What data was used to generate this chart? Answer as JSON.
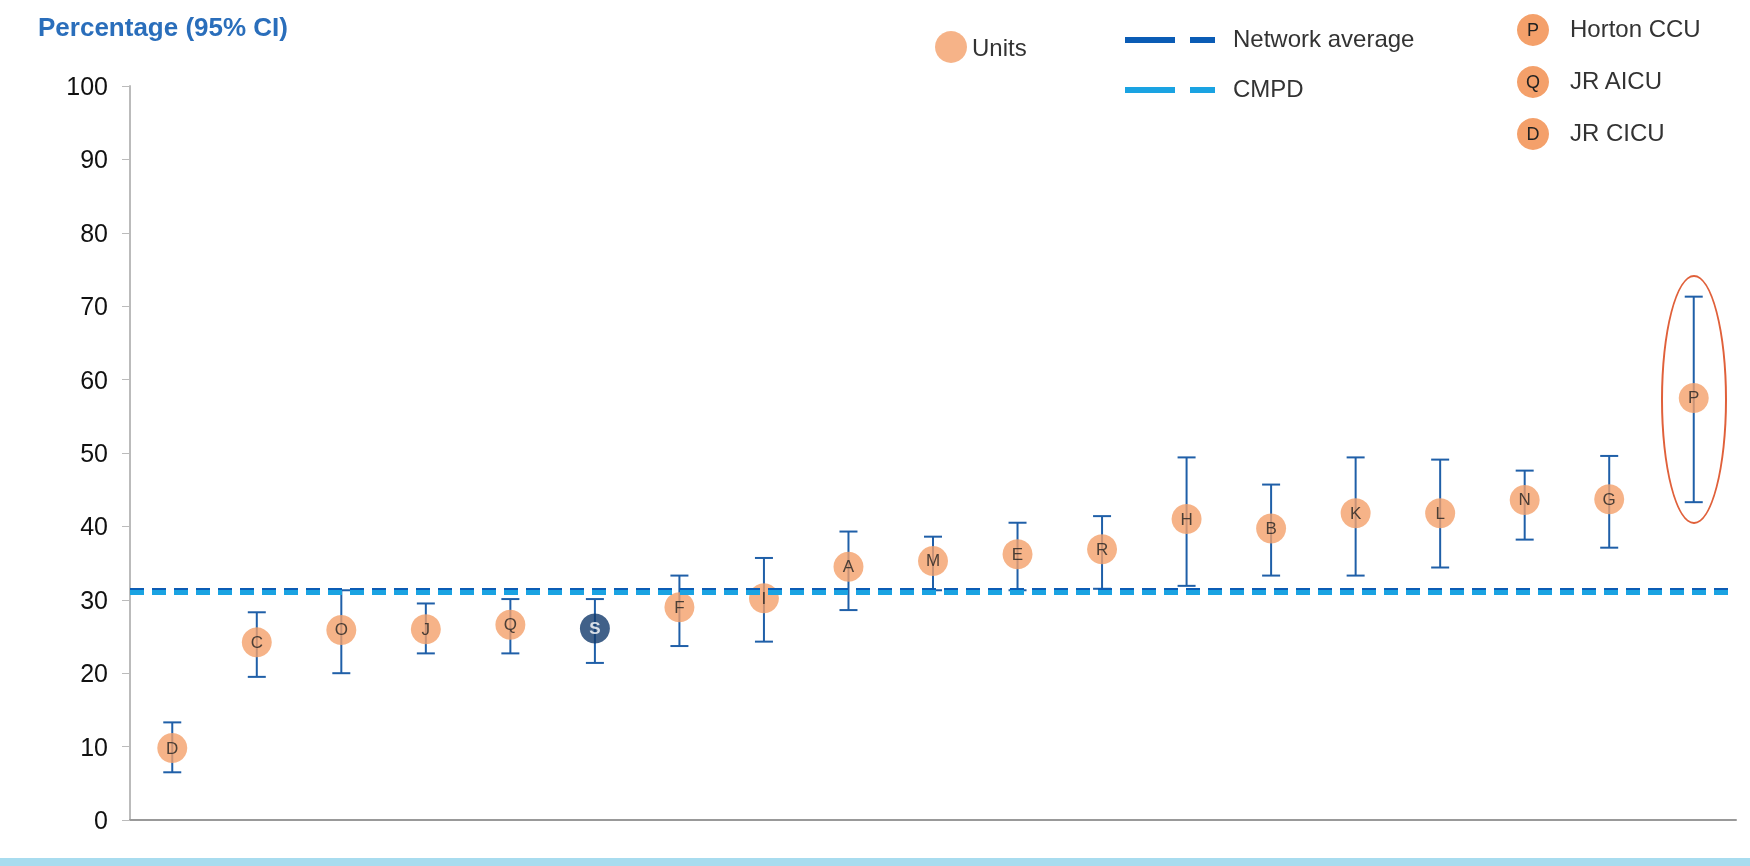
{
  "chart_data": {
    "type": "scatter",
    "ylabel": "Percentage (95% CI)",
    "categories": [
      "D",
      "C",
      "O",
      "J",
      "Q",
      "S",
      "F",
      "I",
      "A",
      "M",
      "E",
      "R",
      "H",
      "B",
      "K",
      "L",
      "N",
      "G",
      "P"
    ],
    "series": [
      {
        "name": "Units",
        "color": "#f4a06a",
        "colors": [
          "#f4a06a",
          "#f4a06a",
          "#f4a06a",
          "#f4a06a",
          "#f4a06a",
          "#123a6b",
          "#f4a06a",
          "#f4a06a",
          "#f4a06a",
          "#f4a06a",
          "#f4a06a",
          "#f4a06a",
          "#f4a06a",
          "#f4a06a",
          "#f4a06a",
          "#f4a06a",
          "#f4a06a",
          "#f4a06a",
          "#f4a06a"
        ],
        "values": [
          9.8,
          24.2,
          25.9,
          26.0,
          26.6,
          26.1,
          29.0,
          30.2,
          34.5,
          35.3,
          36.2,
          36.9,
          41.0,
          39.7,
          41.8,
          41.8,
          43.6,
          43.7,
          57.5
        ],
        "errors": [
          [
            6.5,
            13.3
          ],
          [
            19.5,
            28.3
          ],
          [
            20.0,
            31.3
          ],
          [
            22.7,
            29.5
          ],
          [
            22.7,
            30.1
          ],
          [
            21.4,
            30.1
          ],
          [
            23.7,
            33.3
          ],
          [
            24.3,
            35.7
          ],
          [
            28.6,
            39.3
          ],
          [
            31.3,
            38.6
          ],
          [
            31.3,
            40.5
          ],
          [
            31.5,
            41.4
          ],
          [
            31.9,
            49.4
          ],
          [
            33.3,
            45.7
          ],
          [
            33.3,
            49.4
          ],
          [
            34.4,
            49.1
          ],
          [
            38.2,
            47.6
          ],
          [
            37.1,
            49.6
          ],
          [
            43.3,
            71.3
          ]
        ]
      }
    ],
    "ref_lines": [
      {
        "axis": "y",
        "value": 31.3,
        "label": "Network average",
        "color": "#0b5cb5",
        "line_style": "dashed"
      },
      {
        "axis": "y",
        "value": 31.0,
        "label": "CMPD",
        "color": "#1aa3e2",
        "line_style": "dashed"
      }
    ],
    "annotations": [
      "P",
      "Horton CCU",
      "Q",
      "JR AICU",
      "D",
      "JR CICU"
    ],
    "ylim": [
      0,
      100
    ],
    "yticks": [
      0,
      10,
      20,
      30,
      40,
      50,
      60,
      70,
      80,
      90,
      100
    ],
    "grid": false,
    "legend": "top right",
    "marker": "circle"
  }
}
